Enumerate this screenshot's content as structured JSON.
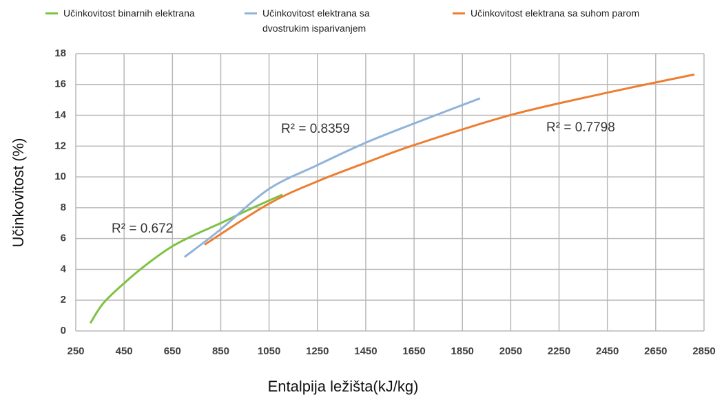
{
  "chart_data": {
    "type": "line",
    "xlabel": "Entalpija ležišta(kJ/kg)",
    "ylabel": "Učinkovitost (%)",
    "xlim": [
      250,
      2850
    ],
    "xticks": [
      250,
      450,
      650,
      850,
      1050,
      1250,
      1450,
      1650,
      1850,
      2050,
      2250,
      2450,
      2650,
      2850
    ],
    "ylim": [
      0,
      18
    ],
    "yticks": [
      0,
      2,
      4,
      6,
      8,
      10,
      12,
      14,
      16,
      18
    ],
    "grid": true,
    "legend": "top",
    "series": [
      {
        "name": "Učinkovitost binarnih elektrana",
        "color": "#7dc242",
        "x": [
          310,
          364,
          450,
          550,
          650,
          750,
          850,
          963,
          1105
        ],
        "values": [
          0.5,
          1.8,
          3.1,
          4.4,
          5.5,
          6.3,
          7.0,
          7.85,
          8.85
        ]
      },
      {
        "name": "Učinkovitost elektrana sa dvostrukim isparivanjem",
        "color": "#8fb3d9",
        "x": [
          700,
          850,
          1048,
          1248,
          1447,
          1647,
          1923
        ],
        "values": [
          4.8,
          6.6,
          9.2,
          10.75,
          12.2,
          13.45,
          15.1
        ]
      },
      {
        "name": "Učinkovitost elektrana sa suhom parom",
        "color": "#ed7d31",
        "x": [
          783,
          1048,
          1248,
          1447,
          1647,
          2046,
          2445,
          2810
        ],
        "values": [
          5.6,
          8.25,
          9.7,
          10.9,
          12.05,
          14.0,
          15.45,
          16.65
        ]
      }
    ],
    "annotations": [
      "R² = 0.672",
      "R² = 0.8359",
      "R² = 0.7798"
    ]
  }
}
